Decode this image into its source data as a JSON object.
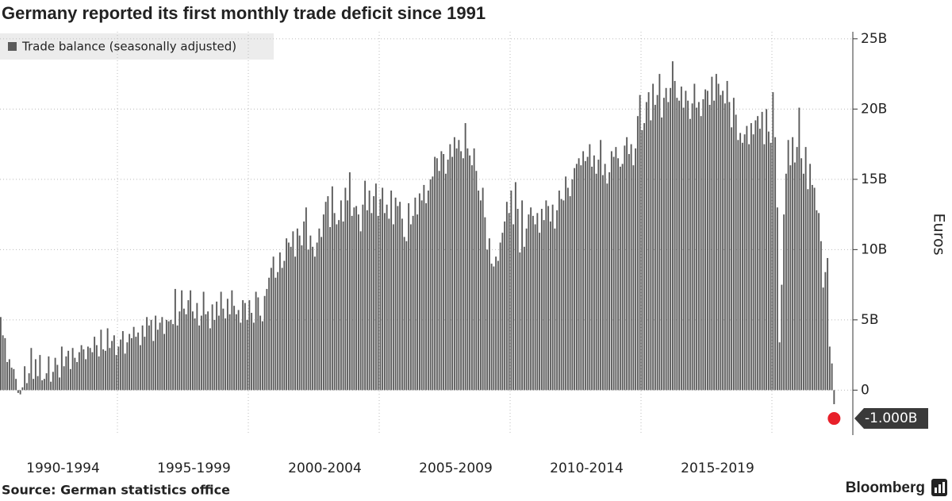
{
  "chart_data": {
    "type": "bar",
    "title": "Germany reported its first monthly trade deficit since 1991",
    "legend": "Trade balance (seasonally adjusted)",
    "y_axis_label": "Euros",
    "source": "Source: German statistics office",
    "brand": "Bloomberg",
    "color": "#5b5b5b",
    "highlight_color": "#e8202a",
    "groups": [
      "1990-1994",
      "1995-1999",
      "2000-2004",
      "2005-2009",
      "2010-2014",
      "2015-2019"
    ],
    "last_value_label": "-1.000B",
    "ylim": [
      -3.2,
      25.5
    ],
    "yticks": [
      0,
      {
        "value": 5,
        "label": "5B"
      },
      {
        "value": 10,
        "label": "10B"
      },
      {
        "value": 15,
        "label": "15B"
      },
      {
        "value": 20,
        "label": "20B"
      },
      {
        "value": 25,
        "label": "25B"
      }
    ],
    "grid": true,
    "values": [
      5.2,
      3.9,
      3.7,
      2.0,
      2.2,
      1.6,
      1.5,
      0.8,
      -0.2,
      -0.3,
      0.2,
      1.7,
      0.5,
      1.2,
      3.0,
      0.8,
      2.2,
      1.0,
      2.5,
      0.7,
      0.8,
      1.2,
      2.4,
      0.6,
      1.3,
      2.3,
      1.8,
      0.9,
      3.1,
      1.7,
      2.4,
      2.8,
      1.5,
      3.0,
      2.3,
      2.0,
      2.7,
      3.2,
      2.9,
      2.2,
      3.1,
      3.0,
      2.7,
      3.8,
      3.2,
      2.4,
      4.3,
      2.9,
      2.8,
      4.4,
      3.0,
      3.5,
      3.9,
      2.5,
      3.1,
      3.6,
      4.2,
      2.6,
      3.4,
      4.0,
      3.7,
      4.5,
      3.8,
      4.1,
      3.2,
      4.6,
      3.8,
      5.2,
      4.6,
      5.0,
      3.5,
      5.3,
      4.3,
      4.8,
      5.2,
      4.0,
      5.0,
      4.9,
      5.0,
      4.7,
      7.2,
      4.6,
      5.6,
      7.1,
      5.8,
      5.4,
      6.4,
      7.1,
      5.6,
      5.1,
      6.2,
      4.6,
      5.3,
      7.0,
      5.4,
      5.6,
      4.4,
      6.1,
      5.0,
      6.3,
      5.3,
      7.0,
      5.8,
      5.1,
      6.5,
      5.4,
      7.1,
      6.0,
      5.4,
      5.7,
      4.8,
      6.4,
      6.2,
      5.0,
      6.4,
      5.5,
      4.8,
      7.0,
      6.6,
      5.3,
      4.9,
      6.7,
      7.2,
      8.0,
      8.7,
      9.5,
      8.0,
      8.4,
      9.8,
      8.7,
      9.2,
      10.8,
      10.5,
      10.2,
      11.3,
      9.5,
      11.5,
      11.0,
      10.3,
      12.0,
      13.0,
      10.0,
      11.0,
      10.2,
      9.5,
      10.5,
      11.5,
      10.9,
      12.5,
      13.4,
      13.8,
      11.6,
      14.5,
      12.6,
      11.8,
      12.1,
      13.5,
      12.0,
      14.4,
      13.5,
      15.5,
      12.4,
      13.0,
      13.1,
      12.5,
      11.3,
      13.2,
      14.9,
      12.8,
      14.2,
      12.6,
      13.8,
      14.7,
      12.4,
      13.6,
      14.4,
      12.6,
      13.2,
      12.2,
      14.2,
      11.8,
      13.7,
      13.1,
      13.4,
      12.2,
      10.9,
      10.6,
      13.3,
      11.8,
      12.4,
      13.7,
      12.5,
      14.0,
      13.5,
      14.6,
      13.3,
      14.2,
      15.0,
      15.2,
      16.6,
      16.5,
      15.6,
      17.0,
      16.8,
      15.4,
      16.4,
      17.5,
      16.6,
      18.0,
      17.2,
      17.8,
      17.0,
      16.5,
      19.0,
      17.2,
      16.7,
      16.0,
      17.2,
      15.6,
      14.2,
      13.5,
      14.4,
      12.3,
      10.0,
      10.8,
      9.0,
      8.8,
      9.5,
      9.2,
      10.5,
      11.2,
      12.0,
      13.4,
      12.6,
      14.2,
      11.8,
      14.8,
      12.9,
      9.8,
      13.5,
      10.2,
      11.5,
      12.5,
      13.0,
      12.4,
      11.8,
      12.6,
      11.2,
      12.9,
      12.1,
      13.5,
      13.1,
      12.0,
      13.2,
      11.5,
      12.8,
      14.2,
      13.6,
      13.5,
      15.2,
      14.4,
      13.8,
      15.0,
      15.8,
      16.1,
      16.5,
      16.0,
      17.0,
      16.3,
      16.6,
      17.5,
      15.9,
      16.7,
      15.4,
      16.4,
      17.8,
      15.3,
      16.1,
      14.7,
      15.5,
      17.0,
      16.6,
      17.3,
      16.5,
      15.9,
      16.1,
      17.4,
      18.0,
      16.8,
      17.5,
      16.0,
      17.2,
      19.5,
      21.0,
      18.5,
      19.0,
      20.5,
      21.2,
      19.2,
      21.8,
      20.3,
      21.0,
      22.5,
      19.4,
      20.8,
      21.5,
      20.5,
      21.5,
      23.4,
      22.0,
      20.8,
      20.6,
      21.6,
      20.1,
      21.3,
      20.6,
      19.3,
      20.4,
      21.8,
      20.1,
      20.5,
      19.5,
      20.7,
      21.4,
      21.3,
      20.3,
      22.3,
      20.6,
      22.5,
      21.8,
      21.0,
      21.3,
      20.4,
      22.0,
      20.5,
      18.7,
      20.8,
      19.6,
      17.8,
      18.3,
      17.6,
      18.2,
      18.8,
      17.5,
      19.0,
      18.2,
      19.2,
      19.5,
      18.6,
      19.8,
      17.5,
      20.0,
      18.4,
      17.6,
      21.2,
      18.0,
      13.0,
      3.4,
      7.5,
      12.5,
      15.4,
      17.8,
      16.0,
      18.0,
      16.2,
      17.3,
      20.1,
      16.5,
      15.4,
      17.3,
      14.3,
      16.1,
      14.6,
      14.4,
      12.8,
      12.6,
      10.6,
      7.3,
      8.4,
      9.4,
      3.1,
      1.9,
      -1.0
    ]
  }
}
